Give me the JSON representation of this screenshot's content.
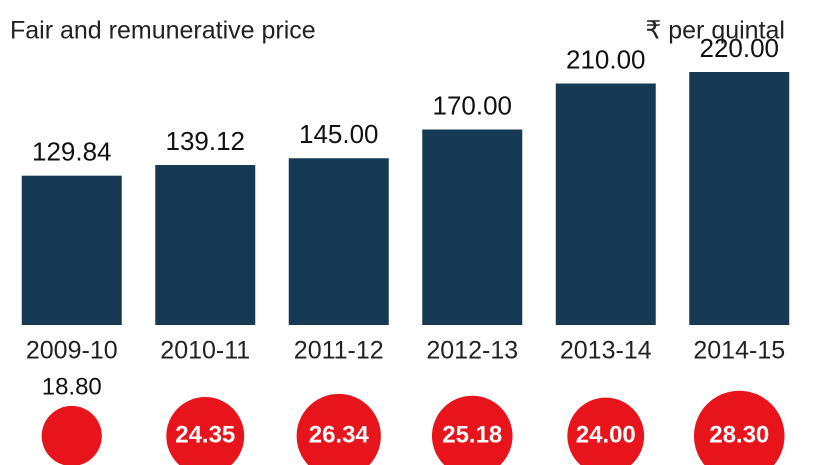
{
  "chart_data": {
    "type": "bar",
    "subtitle": "Fair and remunerative price",
    "unit": "₹ per quintal",
    "categories": [
      "2009-10",
      "2010-11",
      "2011-12",
      "2012-13",
      "2013-14",
      "2014-15"
    ],
    "series": [
      {
        "marks": "bar",
        "color": "#163a54",
        "values": [
          129.84,
          139.12,
          145,
          170,
          210,
          220
        ],
        "value_labels": [
          "129.84",
          "139.12",
          "145.00",
          "170.00",
          "210.00",
          "220.00"
        ]
      },
      {
        "marks": "circle",
        "color": "#e8141b",
        "values": [
          18.8,
          24.35,
          26.34,
          25.18,
          24,
          28.3
        ],
        "value_labels": [
          "18.80",
          "24.35",
          "26.34",
          "25.18",
          "24.00",
          "28.30"
        ]
      }
    ]
  }
}
